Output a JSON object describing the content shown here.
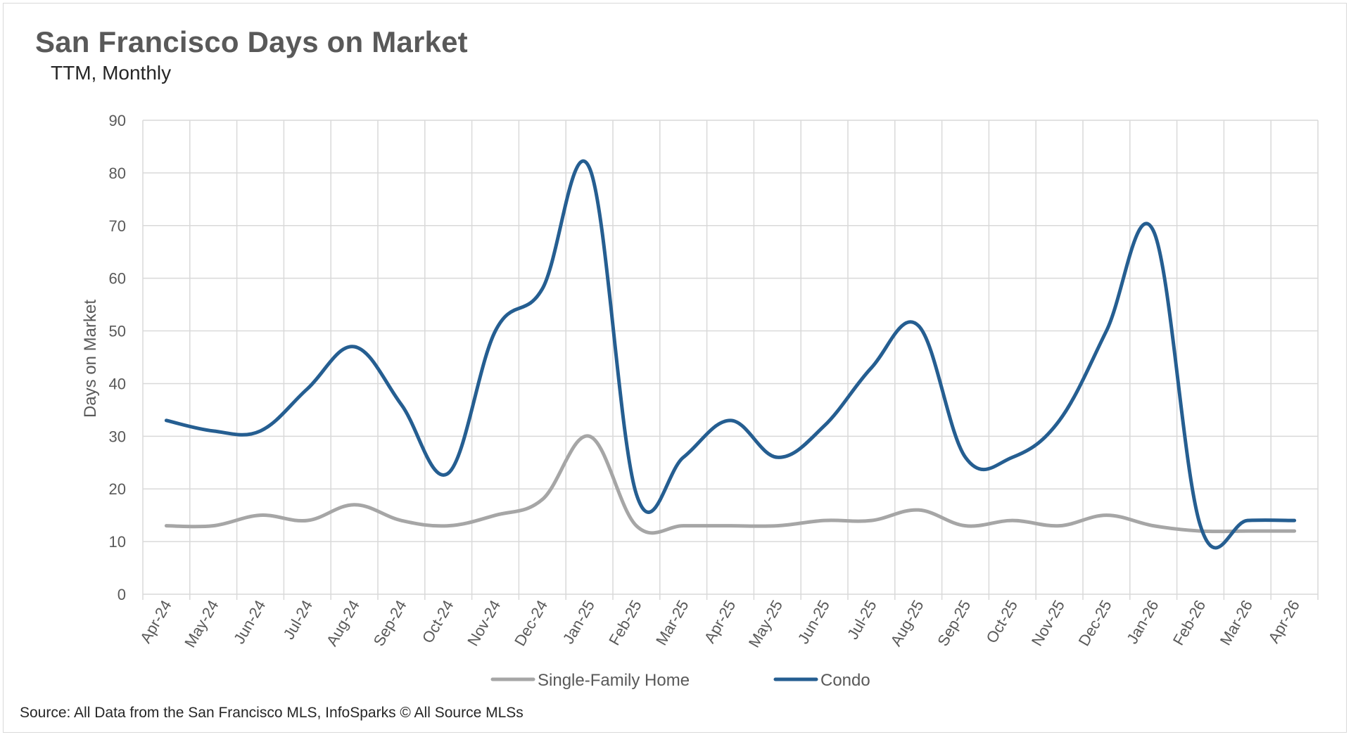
{
  "chart_data": {
    "type": "line",
    "title": "San Francisco Days on Market",
    "subtitle": "TTM, Monthly",
    "ylabel": "Days on Market",
    "xlabel": "",
    "ylim": [
      0,
      90
    ],
    "yticks": [
      0,
      10,
      20,
      30,
      40,
      50,
      60,
      70,
      80,
      90
    ],
    "grid": true,
    "legend_position": "bottom",
    "categories": [
      "Apr-24",
      "May-24",
      "Jun-24",
      "Jul-24",
      "Aug-24",
      "Sep-24",
      "Oct-24",
      "Nov-24",
      "Dec-24",
      "Jan-25",
      "Feb-25",
      "Mar-25",
      "Apr-25",
      "May-25",
      "Jun-25",
      "Jul-25",
      "Aug-25",
      "Sep-25",
      "Oct-25",
      "Nov-25",
      "Dec-25",
      "Jan-26",
      "Feb-26",
      "Mar-26",
      "Apr-26"
    ],
    "series": [
      {
        "name": "Single-Family Home",
        "color": "#a6a6a6",
        "values": [
          13,
          13,
          15,
          14,
          17,
          14,
          13,
          15,
          18,
          30,
          13,
          13,
          13,
          13,
          14,
          14,
          16,
          13,
          14,
          13,
          15,
          13,
          12,
          12,
          12
        ]
      },
      {
        "name": "Condo",
        "color": "#255e91",
        "values": [
          33,
          31,
          31,
          39,
          47,
          36,
          23,
          50,
          58,
          81,
          19,
          26,
          33,
          26,
          32,
          43,
          51,
          26,
          26,
          33,
          50,
          69,
          13,
          14,
          14
        ]
      }
    ]
  },
  "source": "Source: All Data from the San Francisco MLS, InfoSparks © All Source MLSs"
}
